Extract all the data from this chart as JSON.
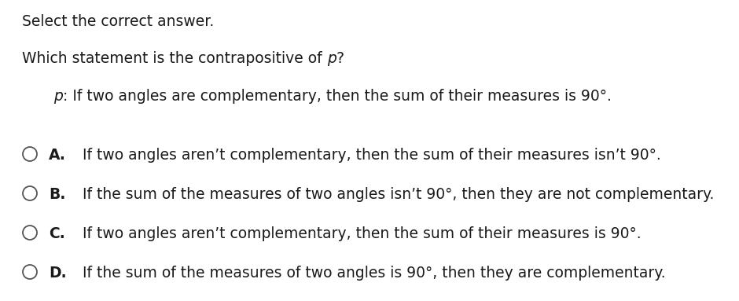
{
  "background_color": "#ffffff",
  "text_color": "#1a1a1a",
  "line1": "Select the correct answer.",
  "line2_pre": "Which statement is the contrapositive of ",
  "line2_italic": "p",
  "line2_post": "?",
  "premise_italic": "p",
  "premise_rest": ": If two angles are complementary, then the sum of their measures is 90°.",
  "options": [
    {
      "label": "A.",
      "text": "If two angles aren’t complementary, then the sum of their measures isn’t 90°."
    },
    {
      "label": "B.",
      "text": "If the sum of the measures of two angles isn’t 90°, then they are not complementary."
    },
    {
      "label": "C.",
      "text": "If two angles aren’t complementary, then the sum of their measures is 90°."
    },
    {
      "label": "D.",
      "text": "If the sum of the measures of two angles is 90°, then they are complementary."
    }
  ],
  "fontsize": 13.5,
  "fig_width": 9.4,
  "fig_height": 3.83,
  "dpi": 100
}
